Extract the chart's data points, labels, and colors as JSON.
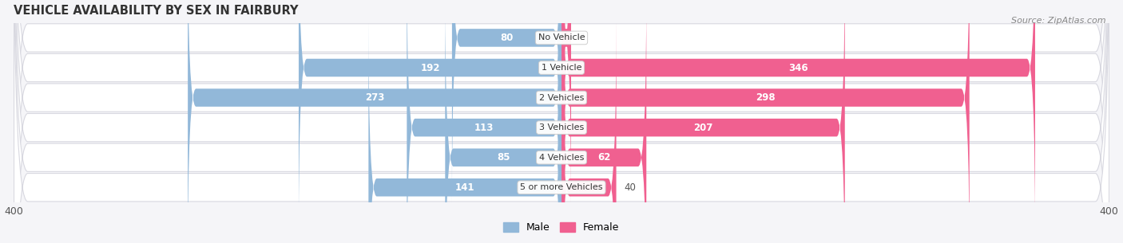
{
  "title": "VEHICLE AVAILABILITY BY SEX IN FAIRBURY",
  "source": "Source: ZipAtlas.com",
  "categories": [
    "No Vehicle",
    "1 Vehicle",
    "2 Vehicles",
    "3 Vehicles",
    "4 Vehicles",
    "5 or more Vehicles"
  ],
  "male_values": [
    80,
    192,
    273,
    113,
    85,
    141
  ],
  "female_values": [
    7,
    346,
    298,
    207,
    62,
    40
  ],
  "male_color": "#92b8d9",
  "female_color": "#f06090",
  "male_color_light": "#b8d4ea",
  "female_color_light": "#f5a0be",
  "row_bg_color": "#ebebf0",
  "row_border_color": "#d8d8e0",
  "axis_max": 400,
  "legend_male": "Male",
  "legend_female": "Female",
  "label_color_inside": "#ffffff",
  "label_color_outside": "#555555",
  "title_color": "#333333",
  "source_color": "#888888",
  "bg_color": "#f5f5f8"
}
